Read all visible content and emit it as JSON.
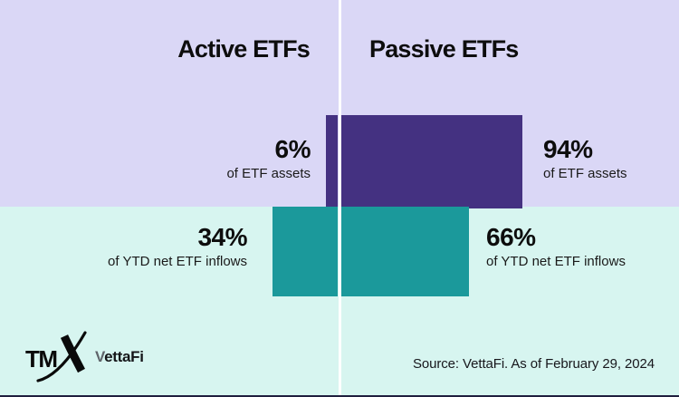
{
  "header": {
    "left": "Active ETFs",
    "right": "Passive ETFs"
  },
  "labels": {
    "assets_active": {
      "pct": "6%",
      "caption": "of ETF assets"
    },
    "assets_passive": {
      "pct": "94%",
      "caption": "of ETF assets"
    },
    "inflows_active": {
      "pct": "34%",
      "caption": "of YTD net ETF inflows"
    },
    "inflows_passive": {
      "pct": "66%",
      "caption": "of YTD net ETF inflows"
    }
  },
  "footer": {
    "tmx_logo_text": "TM",
    "vettafi_v": "V",
    "vettafi_rest": "ettaFi",
    "source": "Source: VettaFi. As of February 29, 2024"
  },
  "colors": {
    "lavender_bg": "#dad7f6",
    "mint_bg": "#d7f5f0",
    "purple_bar": "#443181",
    "teal_bar": "#1b999b",
    "divider": "#ffffff",
    "text": "#0d0d0d",
    "bottom_strip": "#201f3e"
  },
  "chart_data": {
    "type": "bar",
    "title": "Active ETFs vs Passive ETFs",
    "categories": [
      "Active ETFs",
      "Passive ETFs"
    ],
    "series": [
      {
        "name": "of ETF assets",
        "values": [
          6,
          94
        ],
        "color": "#443181"
      },
      {
        "name": "of YTD net ETF inflows",
        "values": [
          34,
          66
        ],
        "color": "#1b999b"
      }
    ],
    "unit": "%",
    "legend_position": "none",
    "grid": false,
    "source": "Source: VettaFi. As of February 29, 2024"
  }
}
